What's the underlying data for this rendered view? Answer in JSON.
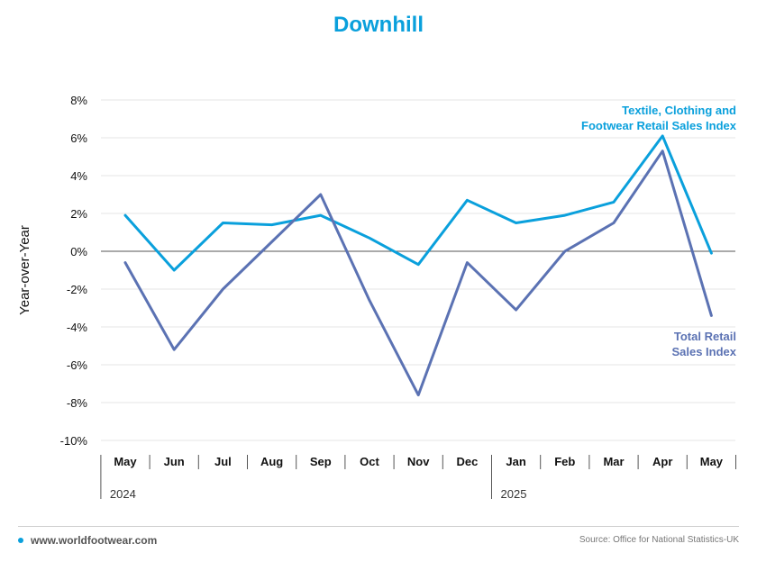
{
  "chart_data": {
    "type": "line",
    "title": "Downhill",
    "ylabel": "Year-over-Year",
    "xlabel": "",
    "categories": [
      "May",
      "Jun",
      "Jul",
      "Aug",
      "Sep",
      "Oct",
      "Nov",
      "Dec",
      "Jan",
      "Feb",
      "Mar",
      "Apr",
      "May"
    ],
    "years": [
      {
        "label": "2024",
        "start_index": 0
      },
      {
        "label": "2025",
        "start_index": 8
      }
    ],
    "yticks": [
      "8%",
      "6%",
      "4%",
      "2%",
      "0%",
      "-2%",
      "-4%",
      "-6%",
      "-8%",
      "-10%"
    ],
    "ylim": [
      -10,
      8
    ],
    "grid": true,
    "series": [
      {
        "name": "Textile, Clothing and Footwear Retail Sales Index",
        "label_lines": [
          "Textile, Clothing and",
          "Footwear Retail Sales Index"
        ],
        "color": "#0aa0dc",
        "values": [
          1.9,
          -1.0,
          1.5,
          1.4,
          1.9,
          0.7,
          -0.7,
          2.7,
          1.5,
          1.9,
          2.6,
          6.1,
          -0.1
        ]
      },
      {
        "name": "Total Retail Sales Index",
        "label_lines": [
          "Total Retail",
          "Sales Index"
        ],
        "color": "#5b72b3",
        "values": [
          -0.6,
          -5.2,
          -2.0,
          0.5,
          3.0,
          -2.6,
          -7.6,
          -0.6,
          -3.1,
          0.0,
          1.5,
          5.3,
          -3.4
        ]
      }
    ]
  },
  "footer": {
    "website": "www.worldfootwear.com",
    "source": "Source: Office for National Statistics-UK"
  }
}
